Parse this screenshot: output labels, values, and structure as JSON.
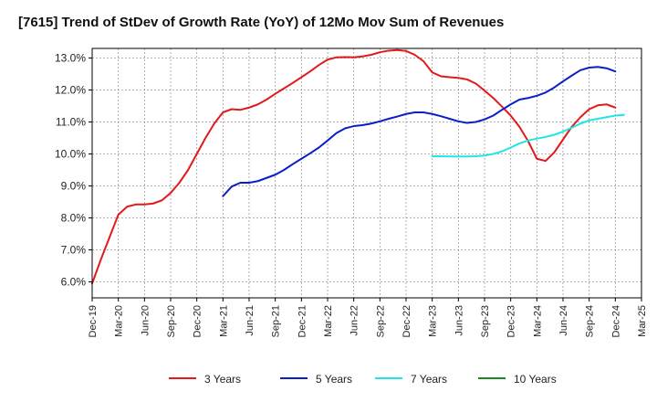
{
  "chart_data": {
    "type": "line",
    "title": "[7615]  Trend of StDev of Growth Rate (YoY) of 12Mo Mov Sum of Revenues",
    "xlabel": "",
    "ylabel": "",
    "ylim": [
      5.5,
      13.3
    ],
    "y_ticks": [
      6.0,
      7.0,
      8.0,
      9.0,
      10.0,
      11.0,
      12.0,
      13.0
    ],
    "y_tick_labels": [
      "6.0%",
      "7.0%",
      "8.0%",
      "9.0%",
      "10.0%",
      "11.0%",
      "12.0%",
      "13.0%"
    ],
    "x_ticks": [
      "Dec-19",
      "Mar-20",
      "Jun-20",
      "Sep-20",
      "Dec-20",
      "Mar-21",
      "Jun-21",
      "Sep-21",
      "Dec-21",
      "Mar-22",
      "Jun-22",
      "Sep-22",
      "Dec-22",
      "Mar-23",
      "Jun-23",
      "Sep-23",
      "Dec-23",
      "Mar-24",
      "Jun-24",
      "Sep-24",
      "Dec-24",
      "Mar-25"
    ],
    "grid": true,
    "legend_position": "bottom",
    "series": [
      {
        "name": "3 Years",
        "color": "#e31a1c",
        "start_index": 0,
        "values": [
          5.95,
          6.7,
          7.4,
          8.1,
          8.35,
          8.42,
          8.42,
          8.45,
          8.55,
          8.78,
          9.1,
          9.5,
          10.0,
          10.5,
          10.95,
          11.3,
          11.4,
          11.38,
          11.45,
          11.55,
          11.7,
          11.88,
          12.05,
          12.22,
          12.4,
          12.58,
          12.78,
          12.95,
          13.02,
          13.03,
          13.02,
          13.05,
          13.1,
          13.18,
          13.23,
          13.25,
          13.22,
          13.1,
          12.9,
          12.55,
          12.43,
          12.4,
          12.38,
          12.33,
          12.2,
          11.98,
          11.75,
          11.48,
          11.2,
          10.85,
          10.4,
          9.85,
          9.78,
          10.05,
          10.45,
          10.85,
          11.15,
          11.4,
          11.52,
          11.55,
          11.45
        ]
      },
      {
        "name": "5 Years",
        "color": "#0a1fc9",
        "start_index": 15,
        "values": [
          8.68,
          8.98,
          9.1,
          9.1,
          9.15,
          9.25,
          9.35,
          9.5,
          9.68,
          9.85,
          10.02,
          10.2,
          10.42,
          10.65,
          10.8,
          10.87,
          10.9,
          10.95,
          11.02,
          11.1,
          11.17,
          11.25,
          11.3,
          11.3,
          11.25,
          11.18,
          11.1,
          11.02,
          10.97,
          11.0,
          11.08,
          11.2,
          11.38,
          11.55,
          11.7,
          11.75,
          11.82,
          11.92,
          12.08,
          12.27,
          12.45,
          12.62,
          12.7,
          12.72,
          12.68,
          12.58
        ]
      },
      {
        "name": "7 Years",
        "color": "#22e5e5",
        "start_index": 39,
        "values": [
          9.93,
          9.93,
          9.92,
          9.92,
          9.92,
          9.93,
          9.95,
          10.0,
          10.08,
          10.2,
          10.33,
          10.42,
          10.48,
          10.53,
          10.6,
          10.7,
          10.82,
          10.95,
          11.05,
          11.1,
          11.15,
          11.2,
          11.22
        ]
      },
      {
        "name": "10 Years",
        "color": "#1a8a1a",
        "start_index": 0,
        "values": []
      }
    ]
  }
}
